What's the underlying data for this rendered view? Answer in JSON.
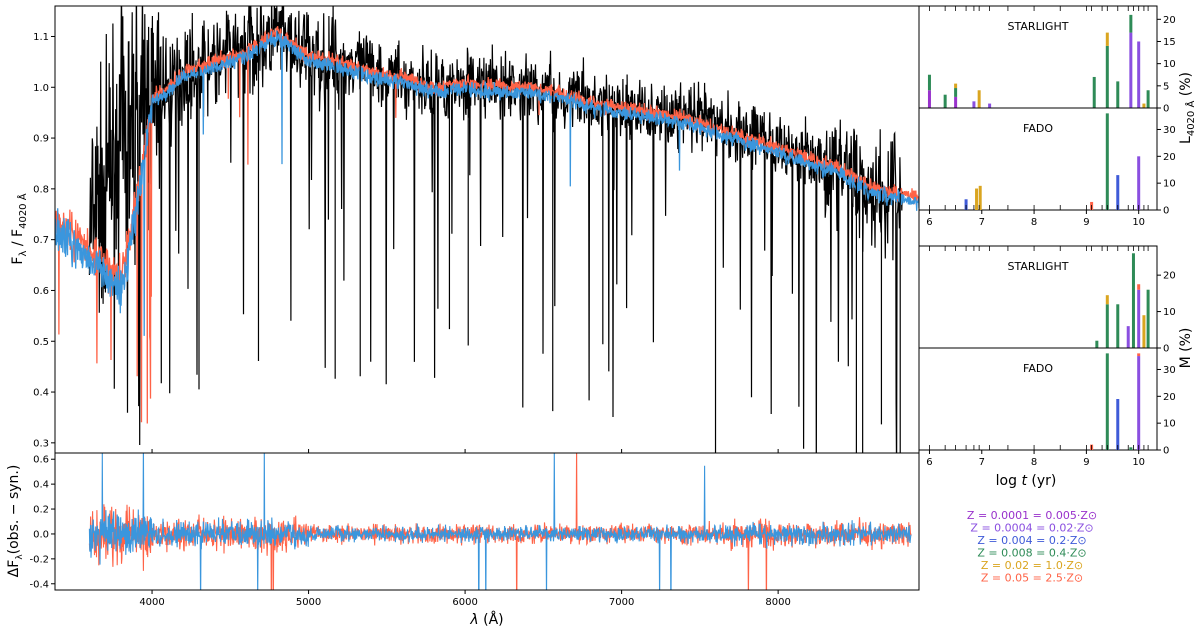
{
  "chart_data": [
    {
      "type": "line",
      "panel": "spectrum",
      "xlabel": "λ (Å)",
      "ylabel": "Fλ / F4020 Å",
      "xlim": [
        3380,
        8900
      ],
      "ylim": [
        0.28,
        1.16
      ],
      "xticks": [
        4000,
        5000,
        6000,
        7000,
        8000
      ],
      "yticks": [
        0.3,
        0.4,
        0.5,
        0.6,
        0.7,
        0.8,
        0.9,
        1.0,
        1.1
      ],
      "series": [
        {
          "role": "observed",
          "color": "#000000",
          "x": [
            3600,
            3800,
            4000,
            4200,
            4400,
            4600,
            4800,
            5000,
            5200,
            5400,
            5600,
            5800,
            6000,
            6200,
            6400,
            6600,
            6800,
            7000,
            7200,
            7400,
            7600,
            7800,
            8000,
            8200,
            8400,
            8600,
            8800
          ],
          "y": [
            0.7,
            0.9,
            0.97,
            1.03,
            1.05,
            1.08,
            1.1,
            1.06,
            1.05,
            1.04,
            1.02,
            1.0,
            1.01,
            1.0,
            1.0,
            0.99,
            0.97,
            0.96,
            0.95,
            0.94,
            0.93,
            0.91,
            0.88,
            0.87,
            0.84,
            0.8,
            0.79
          ]
        },
        {
          "role": "starlight-model",
          "color": "#ff6347",
          "x": [
            3380,
            3500,
            3600,
            3700,
            3800,
            3900,
            4000,
            4100,
            4200,
            4400,
            4600,
            4800,
            5000,
            5200,
            5400,
            5600,
            5800,
            6000,
            6200,
            6400,
            6600,
            6800,
            7000,
            7200,
            7400,
            7600,
            7800,
            8000,
            8200,
            8400,
            8600,
            8800,
            8900
          ],
          "y": [
            0.74,
            0.71,
            0.68,
            0.65,
            0.62,
            0.78,
            0.98,
            1.0,
            1.03,
            1.05,
            1.07,
            1.11,
            1.06,
            1.05,
            1.03,
            1.02,
            1.0,
            1.01,
            1.0,
            1.0,
            0.99,
            0.97,
            0.96,
            0.95,
            0.94,
            0.92,
            0.9,
            0.88,
            0.86,
            0.84,
            0.8,
            0.79,
            0.78
          ]
        },
        {
          "role": "fado-model",
          "color": "#3a96dd",
          "x": [
            3380,
            3500,
            3600,
            3700,
            3800,
            3900,
            4000,
            4100,
            4200,
            4400,
            4600,
            4800,
            5000,
            5200,
            5400,
            5600,
            5800,
            6000,
            6200,
            6400,
            6600,
            6800,
            7000,
            7200,
            7400,
            7600,
            7800,
            8000,
            8200,
            8400,
            8600,
            8800,
            8900
          ],
          "y": [
            0.72,
            0.69,
            0.66,
            0.63,
            0.6,
            0.76,
            0.97,
            0.99,
            1.02,
            1.04,
            1.06,
            1.1,
            1.05,
            1.04,
            1.02,
            1.01,
            0.99,
            1.0,
            0.99,
            0.99,
            0.98,
            0.96,
            0.95,
            0.94,
            0.93,
            0.91,
            0.89,
            0.87,
            0.85,
            0.83,
            0.79,
            0.78,
            0.77
          ]
        }
      ]
    },
    {
      "type": "line",
      "panel": "residuals",
      "xlabel": "λ (Å)",
      "ylabel": "ΔFλ(obs. − syn.)",
      "xlim": [
        3380,
        8900
      ],
      "ylim": [
        -0.45,
        0.65
      ],
      "xticks": [
        4000,
        5000,
        6000,
        7000,
        8000
      ],
      "yticks": [
        -0.4,
        -0.2,
        0.0,
        0.2,
        0.4,
        0.6
      ],
      "series": [
        {
          "role": "starlight-residual",
          "color": "#ff6347",
          "x": [
            3600,
            8850
          ],
          "amplitude": 0.3
        },
        {
          "role": "fado-residual",
          "color": "#3a96dd",
          "x": [
            3600,
            8850
          ],
          "amplitude": 0.25
        }
      ]
    },
    {
      "type": "bar",
      "panel": "light-starlight",
      "title": "STARLIGHT",
      "xlim": [
        5.8,
        10.35
      ],
      "ylim": [
        0,
        23
      ],
      "yticks": [
        0,
        5,
        10,
        15,
        20
      ],
      "bars": [
        {
          "x": 6.0,
          "stack": [
            {
              "z": "Z1",
              "v": 4
            },
            {
              "z": "Z4",
              "v": 3.5
            }
          ]
        },
        {
          "x": 6.3,
          "stack": [
            {
              "z": "Z4",
              "v": 3
            }
          ]
        },
        {
          "x": 6.5,
          "stack": [
            {
              "z": "Z1",
              "v": 2.5
            },
            {
              "z": "Z4",
              "v": 2
            },
            {
              "z": "Z5",
              "v": 1
            }
          ]
        },
        {
          "x": 6.85,
          "stack": [
            {
              "z": "Z2",
              "v": 1.5
            }
          ]
        },
        {
          "x": 6.95,
          "stack": [
            {
              "z": "Z5",
              "v": 4
            }
          ]
        },
        {
          "x": 7.15,
          "stack": [
            {
              "z": "Z2",
              "v": 1
            }
          ]
        },
        {
          "x": 9.15,
          "stack": [
            {
              "z": "Z4",
              "v": 7
            }
          ]
        },
        {
          "x": 9.4,
          "stack": [
            {
              "z": "Z4",
              "v": 14
            },
            {
              "z": "Z5",
              "v": 3
            }
          ]
        },
        {
          "x": 9.6,
          "stack": [
            {
              "z": "Z4",
              "v": 6
            }
          ]
        },
        {
          "x": 9.85,
          "stack": [
            {
              "z": "Z2",
              "v": 17
            },
            {
              "z": "Z4",
              "v": 4
            }
          ]
        },
        {
          "x": 10.0,
          "stack": [
            {
              "z": "Z2",
              "v": 15
            }
          ]
        },
        {
          "x": 10.1,
          "stack": [
            {
              "z": "Z5",
              "v": 1
            }
          ]
        },
        {
          "x": 10.18,
          "stack": [
            {
              "z": "Z4",
              "v": 4
            }
          ]
        }
      ]
    },
    {
      "type": "bar",
      "panel": "light-fado",
      "title": "FADO",
      "xlim": [
        5.8,
        10.35
      ],
      "ylim": [
        0,
        38
      ],
      "yticks": [
        0,
        10,
        20,
        30
      ],
      "xticks": [
        6,
        7,
        8,
        9,
        10
      ],
      "bars": [
        {
          "x": 6.7,
          "stack": [
            {
              "z": "Z3",
              "v": 4
            }
          ]
        },
        {
          "x": 6.9,
          "stack": [
            {
              "z": "Z5",
              "v": 8
            }
          ]
        },
        {
          "x": 6.97,
          "stack": [
            {
              "z": "Z5",
              "v": 9
            }
          ]
        },
        {
          "x": 9.1,
          "stack": [
            {
              "z": "Z6",
              "v": 3
            }
          ]
        },
        {
          "x": 9.4,
          "stack": [
            {
              "z": "Z4",
              "v": 36
            }
          ]
        },
        {
          "x": 9.6,
          "stack": [
            {
              "z": "Z3",
              "v": 13
            }
          ]
        },
        {
          "x": 10.0,
          "stack": [
            {
              "z": "Z2",
              "v": 20
            }
          ]
        }
      ]
    },
    {
      "type": "bar",
      "panel": "mass-starlight",
      "title": "STARLIGHT",
      "xlim": [
        5.8,
        10.35
      ],
      "ylim": [
        0,
        28
      ],
      "yticks": [
        0,
        10,
        20
      ],
      "bars": [
        {
          "x": 9.2,
          "stack": [
            {
              "z": "Z4",
              "v": 2
            }
          ]
        },
        {
          "x": 9.4,
          "stack": [
            {
              "z": "Z4",
              "v": 12
            },
            {
              "z": "Z5",
              "v": 2.5
            }
          ]
        },
        {
          "x": 9.6,
          "stack": [
            {
              "z": "Z4",
              "v": 12
            }
          ]
        },
        {
          "x": 9.8,
          "stack": [
            {
              "z": "Z2",
              "v": 6
            }
          ]
        },
        {
          "x": 9.9,
          "stack": [
            {
              "z": "Z4",
              "v": 26
            }
          ]
        },
        {
          "x": 10.0,
          "stack": [
            {
              "z": "Z2",
              "v": 16
            },
            {
              "z": "Z6",
              "v": 1.5
            }
          ]
        },
        {
          "x": 10.1,
          "stack": [
            {
              "z": "Z5",
              "v": 9
            }
          ]
        },
        {
          "x": 10.18,
          "stack": [
            {
              "z": "Z4",
              "v": 16
            }
          ]
        }
      ]
    },
    {
      "type": "bar",
      "panel": "mass-fado",
      "title": "FADO",
      "xlim": [
        5.8,
        10.35
      ],
      "ylim": [
        0,
        38
      ],
      "yticks": [
        0,
        10,
        20,
        30
      ],
      "xticks": [
        6,
        7,
        8,
        9,
        10
      ],
      "bars": [
        {
          "x": 9.1,
          "stack": [
            {
              "z": "Z6",
              "v": 2
            }
          ]
        },
        {
          "x": 9.4,
          "stack": [
            {
              "z": "Z4",
              "v": 36
            }
          ]
        },
        {
          "x": 9.6,
          "stack": [
            {
              "z": "Z3",
              "v": 19
            }
          ]
        },
        {
          "x": 9.85,
          "stack": [
            {
              "z": "Z4",
              "v": 1
            }
          ]
        },
        {
          "x": 10.0,
          "stack": [
            {
              "z": "Z2",
              "v": 35
            },
            {
              "z": "Z6",
              "v": 1
            }
          ]
        }
      ]
    }
  ],
  "labels": {
    "spec_ylabel_main": "F",
    "spec_ylabel_sub1": "λ",
    "spec_ylabel_mid": " / F",
    "spec_ylabel_sub2": "4020 Å",
    "resid_ylabel_pre": "ΔF",
    "resid_ylabel_sub": "λ",
    "resid_ylabel_post": "(obs. − syn.)",
    "xlabel_main_lam": "λ",
    "xlabel_main_unit": " (Å)",
    "light_ylabel_pre": "L",
    "light_ylabel_sub": "4020 Å",
    "light_ylabel_post": " (%)",
    "mass_ylabel": "M (%)",
    "age_xlabel_pre": "log ",
    "age_xlabel_t": "t",
    "age_xlabel_post": " (yr)"
  },
  "metallicities": [
    {
      "id": "Z1",
      "text": "Z = 0.0001 = 0.005·Z⊙",
      "color": "#9932cc"
    },
    {
      "id": "Z2",
      "text": "Z = 0.0004 = 0.02·Z⊙",
      "color": "#8a4fe0"
    },
    {
      "id": "Z3",
      "text": "Z = 0.004 = 0.2·Z⊙",
      "color": "#3f5bd8"
    },
    {
      "id": "Z4",
      "text": "Z = 0.008 = 0.4·Z⊙",
      "color": "#2e8b57"
    },
    {
      "id": "Z5",
      "text": "Z = 0.02 = 1.0·Z⊙",
      "color": "#daa520"
    },
    {
      "id": "Z6",
      "text": "Z = 0.05 = 2.5·Z⊙",
      "color": "#ff6347"
    }
  ]
}
